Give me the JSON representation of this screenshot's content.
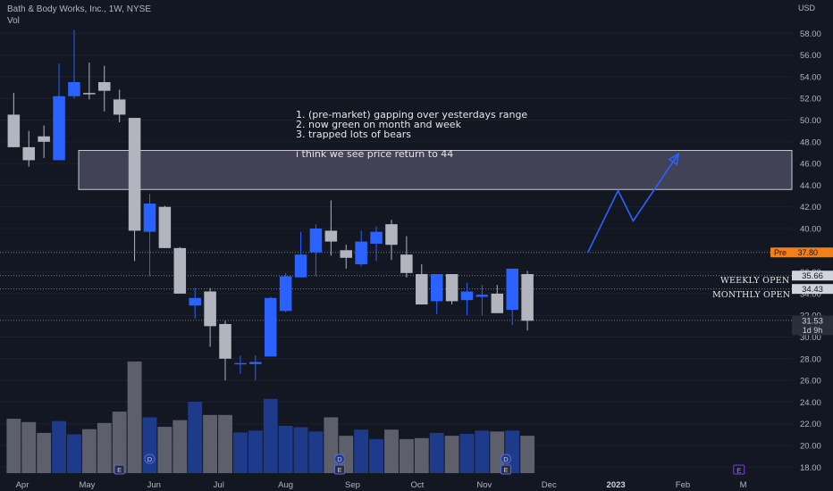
{
  "header": {
    "title": "Bath & Body Works, Inc., 1W, NYSE",
    "vol_label": "Vol"
  },
  "currency": "USD",
  "notes": [
    "1. (pre-market) gapping over yesterdays range",
    "2. now green on month and week",
    "3. trapped lots of bears",
    "",
    "i think we see price return to 44"
  ],
  "level_labels": {
    "weekly_open": "WEEKLY OPEN",
    "monthly_open": "MONTHLY OPEN"
  },
  "price_tags": {
    "pre_label": "Pre",
    "pre_value": "37.80",
    "weekly_open": "35.66",
    "monthly_open": "34.43",
    "last_price": "31.53",
    "countdown": "1d 9h"
  },
  "colors": {
    "up": "#2962ff",
    "down": "#b2b5be",
    "vol_up": "#1e3a8a",
    "vol_down": "#5d606b",
    "zone_fill": "#4a4a5e",
    "pre_tag": "#f57f17",
    "projection": "#2962ff"
  },
  "event_markers": [
    {
      "label": "E",
      "date": "2022-05-16"
    },
    {
      "label": "D",
      "date": "2022-05-30"
    },
    {
      "label": "D",
      "date": "2022-08-26"
    },
    {
      "label": "E",
      "date": "2022-08-26"
    },
    {
      "label": "D",
      "date": "2022-11-11"
    },
    {
      "label": "E",
      "date": "2022-11-11"
    },
    {
      "label": "E",
      "date": "2023-02-27"
    }
  ],
  "chart_data": {
    "type": "candlestick",
    "title": "Bath & Body Works, Inc., 1W, NYSE",
    "y_axis": {
      "ticks": [
        18,
        20,
        22,
        24,
        26,
        28,
        30,
        32,
        34,
        36,
        38,
        40,
        42,
        44,
        46,
        48,
        50,
        52,
        54,
        56,
        58
      ],
      "range": [
        17,
        59.5
      ],
      "position": "right",
      "scale": "linear"
    },
    "x_axis": {
      "labels": [
        "Apr",
        "May",
        "Jun",
        "Jul",
        "Aug",
        "Sep",
        "Oct",
        "Nov",
        "Dec",
        "2023",
        "Feb",
        "M"
      ]
    },
    "candles": [
      {
        "date": "2022-03-28",
        "o": 50.5,
        "h": 52.5,
        "l": 47.5,
        "c": 47.5,
        "v": 11.5
      },
      {
        "date": "2022-04-04",
        "o": 47.5,
        "h": 49.0,
        "l": 45.7,
        "c": 46.3,
        "v": 10.8
      },
      {
        "date": "2022-04-11",
        "o": 48.5,
        "h": 49.5,
        "l": 46.5,
        "c": 48.0,
        "v": 8.5
      },
      {
        "date": "2022-04-18",
        "o": 46.3,
        "h": 55.2,
        "l": 46.3,
        "c": 52.2,
        "v": 11.0
      },
      {
        "date": "2022-04-25",
        "o": 52.2,
        "h": 58.3,
        "l": 52.0,
        "c": 53.5,
        "v": 8.2
      },
      {
        "date": "2022-05-02",
        "o": 52.5,
        "h": 55.3,
        "l": 51.9,
        "c": 52.4,
        "v": 9.3
      },
      {
        "date": "2022-05-09",
        "o": 53.5,
        "h": 55.0,
        "l": 50.8,
        "c": 52.7,
        "v": 10.6
      },
      {
        "date": "2022-05-16",
        "o": 51.9,
        "h": 52.8,
        "l": 49.8,
        "c": 50.5,
        "v": 13.0
      },
      {
        "date": "2022-05-23",
        "o": 50.2,
        "h": 50.2,
        "l": 37.0,
        "c": 39.8,
        "v": 23.6
      },
      {
        "date": "2022-05-30",
        "o": 39.7,
        "h": 43.2,
        "l": 35.6,
        "c": 42.3,
        "v": 11.8
      },
      {
        "date": "2022-06-06",
        "o": 42.0,
        "h": 42.1,
        "l": 38.2,
        "c": 38.2,
        "v": 9.8
      },
      {
        "date": "2022-06-13",
        "o": 38.2,
        "h": 38.3,
        "l": 34.0,
        "c": 34.0,
        "v": 11.2
      },
      {
        "date": "2022-06-20",
        "o": 32.9,
        "h": 34.5,
        "l": 31.7,
        "c": 33.6,
        "v": 15.1
      },
      {
        "date": "2022-06-27",
        "o": 34.2,
        "h": 34.5,
        "l": 29.1,
        "c": 31.0,
        "v": 12.3
      },
      {
        "date": "2022-07-04",
        "o": 31.2,
        "h": 31.5,
        "l": 26.0,
        "c": 28.0,
        "v": 12.3
      },
      {
        "date": "2022-07-11",
        "o": 27.5,
        "h": 28.3,
        "l": 26.6,
        "c": 27.6,
        "v": 8.6
      },
      {
        "date": "2022-07-18",
        "o": 27.5,
        "h": 28.3,
        "l": 26.0,
        "c": 27.7,
        "v": 9.0
      },
      {
        "date": "2022-07-25",
        "o": 28.2,
        "h": 33.7,
        "l": 28.2,
        "c": 33.6,
        "v": 15.7
      },
      {
        "date": "2022-08-01",
        "o": 32.4,
        "h": 35.9,
        "l": 32.3,
        "c": 35.6,
        "v": 10.0
      },
      {
        "date": "2022-08-08",
        "o": 35.5,
        "h": 39.7,
        "l": 35.5,
        "c": 37.6,
        "v": 9.7
      },
      {
        "date": "2022-08-15",
        "o": 37.8,
        "h": 40.4,
        "l": 35.6,
        "c": 40.0,
        "v": 8.8
      },
      {
        "date": "2022-08-22",
        "o": 39.8,
        "h": 42.6,
        "l": 37.5,
        "c": 38.8,
        "v": 11.8
      },
      {
        "date": "2022-08-29",
        "o": 38.0,
        "h": 38.5,
        "l": 36.3,
        "c": 37.3,
        "v": 7.9
      },
      {
        "date": "2022-09-05",
        "o": 36.7,
        "h": 39.8,
        "l": 36.5,
        "c": 38.8,
        "v": 9.2
      },
      {
        "date": "2022-09-12",
        "o": 38.6,
        "h": 40.2,
        "l": 37.0,
        "c": 39.7,
        "v": 7.2
      },
      {
        "date": "2022-09-19",
        "o": 40.4,
        "h": 40.8,
        "l": 37.1,
        "c": 38.5,
        "v": 9.2
      },
      {
        "date": "2022-09-26",
        "o": 37.6,
        "h": 39.3,
        "l": 35.5,
        "c": 35.9,
        "v": 7.2
      },
      {
        "date": "2022-10-03",
        "o": 35.8,
        "h": 36.7,
        "l": 33.0,
        "c": 33.0,
        "v": 7.4
      },
      {
        "date": "2022-10-10",
        "o": 33.3,
        "h": 35.8,
        "l": 32.1,
        "c": 35.8,
        "v": 8.5
      },
      {
        "date": "2022-10-17",
        "o": 35.8,
        "h": 35.8,
        "l": 33.0,
        "c": 33.3,
        "v": 7.9
      },
      {
        "date": "2022-10-24",
        "o": 33.4,
        "h": 35.0,
        "l": 32.0,
        "c": 34.2,
        "v": 8.3
      },
      {
        "date": "2022-10-31",
        "o": 33.7,
        "h": 34.8,
        "l": 32.0,
        "c": 33.9,
        "v": 9.0
      },
      {
        "date": "2022-11-07",
        "o": 34.0,
        "h": 34.8,
        "l": 32.2,
        "c": 32.2,
        "v": 8.8
      },
      {
        "date": "2022-11-14",
        "o": 32.5,
        "h": 36.3,
        "l": 31.1,
        "c": 36.3,
        "v": 9.0
      },
      {
        "date": "2022-11-21",
        "o": 35.8,
        "h": 36.1,
        "l": 30.6,
        "c": 31.5,
        "v": 7.9
      }
    ],
    "horizontal_levels": [
      {
        "name": "WEEKLY OPEN",
        "price": 35.66
      },
      {
        "name": "MONTHLY OPEN",
        "price": 34.43
      },
      {
        "name": "Pre",
        "price": 37.8
      },
      {
        "name": "Last",
        "price": 31.53
      }
    ],
    "zone": {
      "top": 47.2,
      "bottom": 43.6,
      "start": "2022-05-02"
    },
    "projection": [
      {
        "date": "2022-12-19",
        "price": 37.8
      },
      {
        "date": "2023-01-02",
        "price": 43.5
      },
      {
        "date": "2023-01-09",
        "price": 40.7
      },
      {
        "date": "2023-01-30",
        "price": 46.9
      }
    ]
  }
}
